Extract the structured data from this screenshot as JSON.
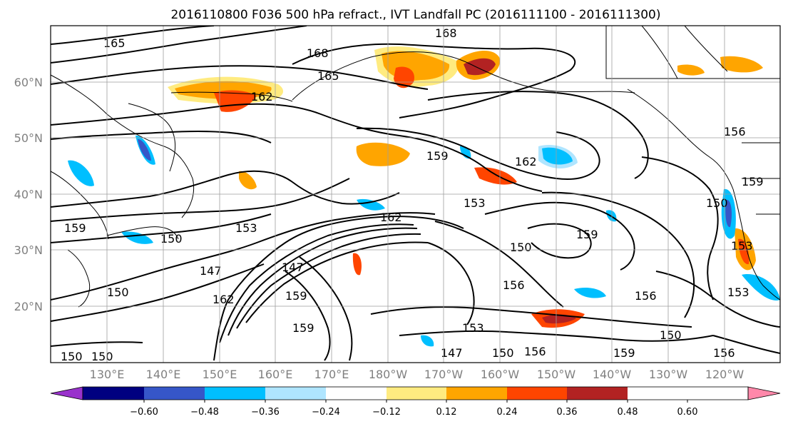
{
  "figure": {
    "title": "2016110800 F036 500 hPa refract., IVT Landfall PC (2016111100 - 2016111300)"
  },
  "map": {
    "lat_labels": [
      "60°N",
      "50°N",
      "40°N",
      "30°N",
      "20°N"
    ],
    "lon_labels": [
      "130°E",
      "140°E",
      "150°E",
      "160°E",
      "170°E",
      "180°W",
      "170°W",
      "160°W",
      "150°W",
      "140°W",
      "130°W",
      "120°W"
    ],
    "contour_labels": [
      "165",
      "168",
      "168",
      "165",
      "162",
      "159",
      "162",
      "153",
      "159",
      "162",
      "159",
      "150",
      "153",
      "150",
      "159",
      "147",
      "150",
      "150",
      "156",
      "153",
      "147",
      "153",
      "156",
      "150",
      "153",
      "162",
      "159",
      "150",
      "150",
      "156",
      "150",
      "147",
      "156",
      "159",
      "159",
      "156"
    ]
  },
  "colorbar": {
    "colors": [
      "#9932cc",
      "#000080",
      "#3656c8",
      "#00bfff",
      "#afe5ff",
      "#ffffff",
      "#ffeb80",
      "#ffa500",
      "#ff4500",
      "#b22222",
      "#ff88aa"
    ],
    "tick_labels": [
      "−0.60",
      "−0.48",
      "−0.36",
      "−0.24",
      "−0.12",
      "0.12",
      "0.24",
      "0.36",
      "0.48",
      "0.60"
    ]
  }
}
